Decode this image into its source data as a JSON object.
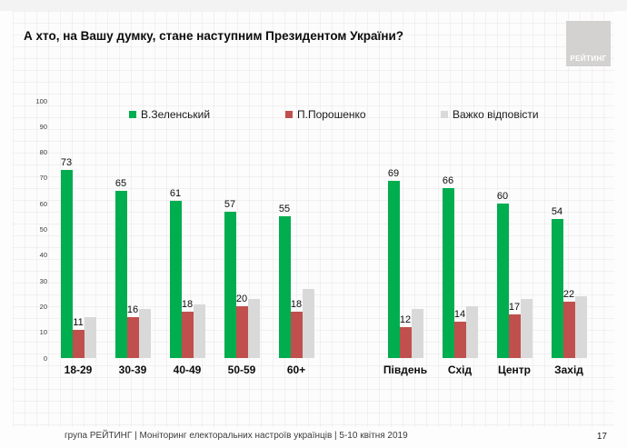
{
  "slide": {
    "title": "А хто, на Вашу думку, стане наступним Президентом України?",
    "logo_text": "РЕЙТИНГ",
    "footer": "група РЕЙТИНГ | Моніторинг електоральних настроїв українців | 5-10 квітня 2019",
    "page_number": "17"
  },
  "chart_data": {
    "type": "bar",
    "title": "А хто, на Вашу думку, стане наступним Президентом України?",
    "categories": [
      "18-29",
      "30-39",
      "40-49",
      "50-59",
      "60+",
      "Південь",
      "Схід",
      "Центр",
      "Захід"
    ],
    "gap_after_category": "60+",
    "series": [
      {
        "name": "В.Зеленський",
        "color": "#00AD4F",
        "values": [
          73,
          65,
          61,
          57,
          55,
          69,
          66,
          60,
          54
        ],
        "labels_shown": true
      },
      {
        "name": "П.Порошенко",
        "color": "#C0504D",
        "values": [
          11,
          16,
          18,
          20,
          18,
          12,
          14,
          17,
          22
        ],
        "labels_shown": true
      },
      {
        "name": "Важко відповісти",
        "color": "#D9D9D9",
        "values": [
          16,
          19,
          21,
          23,
          27,
          19,
          20,
          23,
          24
        ],
        "labels_shown": false
      }
    ],
    "xlabel": "",
    "ylabel": "",
    "ylim": [
      0,
      100
    ],
    "yticks": [
      0,
      10,
      20,
      30,
      40,
      50,
      60,
      70,
      80,
      90,
      100
    ],
    "legend_position": "top",
    "grid": false
  }
}
